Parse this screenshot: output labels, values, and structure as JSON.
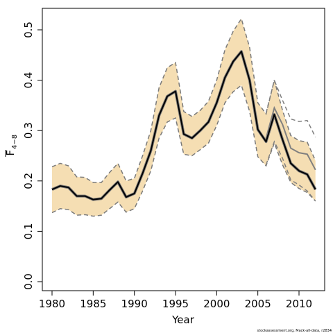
{
  "chart_data": {
    "type": "line",
    "xlabel": "Year",
    "ylabel_main": "F",
    "ylabel_sub": "4−8",
    "footer": "stockassessment.org, Mack-all-data, r2834",
    "xlim": [
      1980,
      2012
    ],
    "ylim": [
      0,
      0.5
    ],
    "x_ticks": [
      1980,
      1985,
      1990,
      1995,
      2000,
      2005,
      2010
    ],
    "y_ticks": [
      "0.0",
      "0.1",
      "0.2",
      "0.3",
      "0.4",
      "0.5"
    ],
    "colors": {
      "band": "#f5deb3",
      "band_edge": "#7a7a7a",
      "estimate": "#000000",
      "estimate_outline": "#7a7a7a",
      "previous": "#808080"
    },
    "x": [
      1980,
      1981,
      1982,
      1983,
      1984,
      1985,
      1986,
      1987,
      1988,
      1989,
      1990,
      1991,
      1992,
      1993,
      1994,
      1995,
      1996,
      1997,
      1998,
      1999,
      2000,
      2001,
      2002,
      2003,
      2004,
      2005,
      2006,
      2007,
      2008,
      2009,
      2010,
      2011,
      2012
    ],
    "series": [
      {
        "values": [
          0.183,
          0.19,
          0.187,
          0.17,
          0.17,
          0.163,
          0.165,
          0.182,
          0.198,
          0.168,
          0.175,
          0.215,
          0.26,
          0.33,
          0.368,
          0.378,
          0.293,
          0.285,
          0.3,
          0.317,
          0.355,
          0.405,
          0.437,
          0.457,
          0.4,
          0.302,
          0.278,
          0.332,
          0.282,
          0.235,
          0.22,
          0.213,
          0.183
        ]
      }
    ],
    "band_lower": [
      0.137,
      0.145,
      0.143,
      0.132,
      0.133,
      0.13,
      0.132,
      0.145,
      0.158,
      0.138,
      0.145,
      0.18,
      0.22,
      0.285,
      0.317,
      0.325,
      0.253,
      0.25,
      0.262,
      0.275,
      0.31,
      0.355,
      0.377,
      0.39,
      0.338,
      0.248,
      0.23,
      0.275,
      0.232,
      0.197,
      0.185,
      0.177,
      0.16
    ],
    "band_upper": [
      0.228,
      0.235,
      0.23,
      0.208,
      0.207,
      0.197,
      0.197,
      0.217,
      0.235,
      0.2,
      0.205,
      0.25,
      0.3,
      0.385,
      0.425,
      0.435,
      0.338,
      0.328,
      0.34,
      0.358,
      0.4,
      0.46,
      0.497,
      0.522,
      0.465,
      0.355,
      0.333,
      0.4,
      0.34,
      0.29,
      0.28,
      0.277,
      0.24
    ],
    "previous": {
      "x": [
        2006,
        2007,
        2008,
        2009,
        2010,
        2011,
        2012
      ],
      "values": [
        0.285,
        0.345,
        0.312,
        0.265,
        0.256,
        0.253,
        0.222
      ]
    },
    "previous_upper": {
      "x": [
        2006,
        2007,
        2008,
        2009,
        2010,
        2011,
        2012
      ],
      "values": [
        0.335,
        0.4,
        0.36,
        0.323,
        0.318,
        0.32,
        0.287
      ]
    },
    "previous_lower": {
      "x": [
        2006,
        2007,
        2008,
        2009,
        2010,
        2011,
        2012
      ],
      "values": [
        0.232,
        0.278,
        0.245,
        0.202,
        0.192,
        0.18,
        0.16
      ]
    }
  }
}
